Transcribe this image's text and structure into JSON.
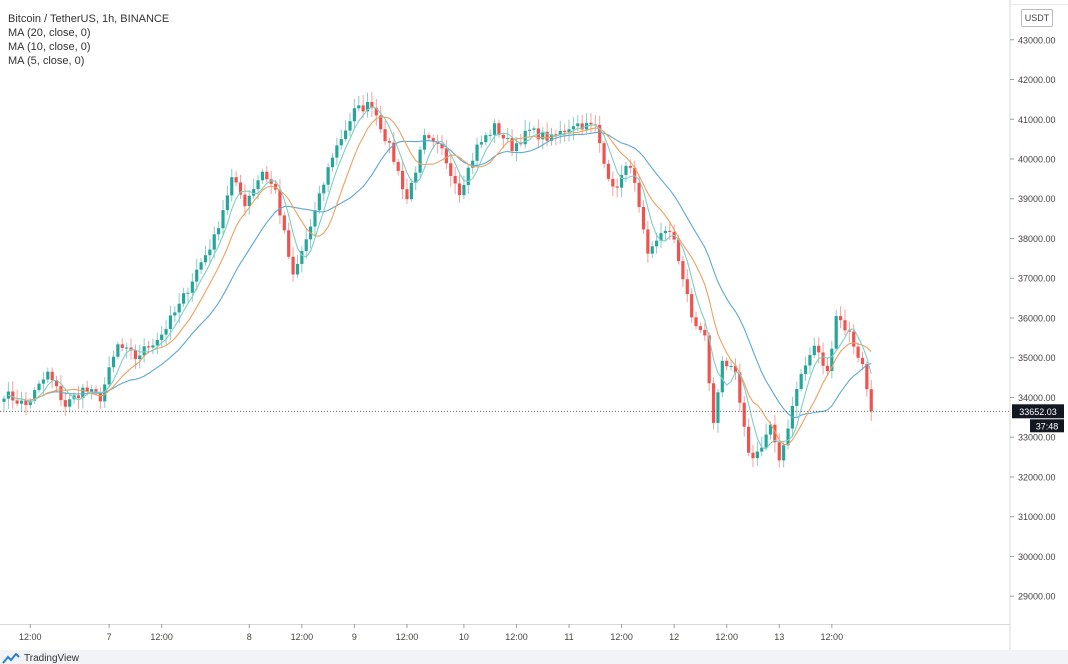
{
  "chart_data": {
    "type": "candlestick",
    "title": "Bitcoin / TetherUS, 1h, BINANCE",
    "currency": "USDT",
    "indicators": [
      {
        "label": "MA (20, close, 0)",
        "color": "#5fa8d3"
      },
      {
        "label": "MA (10, close, 0)",
        "color": "#f0a060"
      },
      {
        "label": "MA (5, close, 0)",
        "color": "#7fcfc2"
      }
    ],
    "y_ticks": [
      "43000.00",
      "42000.00",
      "41000.00",
      "40000.00",
      "39000.00",
      "38000.00",
      "37000.00",
      "36000.00",
      "35000.00",
      "34000.00",
      "33000.00",
      "32000.00",
      "31000.00",
      "30000.00",
      "29000.00"
    ],
    "ylim": [
      28300,
      43900
    ],
    "x_ticks": [
      "12:00",
      "7",
      "12:00",
      "8",
      "12:00",
      "9",
      "12:00",
      "10",
      "12:00",
      "11",
      "12:00",
      "12",
      "12:00",
      "13",
      "12:00"
    ],
    "last_price": "33652.03",
    "countdown": "37:48",
    "colors": {
      "up": "#26a69a",
      "down": "#ef5350"
    },
    "keypoints": [
      [
        0,
        34100
      ],
      [
        5,
        33800
      ],
      [
        10,
        34600
      ],
      [
        14,
        33800
      ],
      [
        18,
        34200
      ],
      [
        22,
        34000
      ],
      [
        26,
        35300
      ],
      [
        30,
        35000
      ],
      [
        36,
        35600
      ],
      [
        40,
        36300
      ],
      [
        44,
        37200
      ],
      [
        48,
        38000
      ],
      [
        52,
        39500
      ],
      [
        55,
        38900
      ],
      [
        59,
        39700
      ],
      [
        62,
        39200
      ],
      [
        66,
        37000
      ],
      [
        70,
        38300
      ],
      [
        75,
        40100
      ],
      [
        80,
        41200
      ],
      [
        84,
        41400
      ],
      [
        89,
        40000
      ],
      [
        92,
        39000
      ],
      [
        96,
        40500
      ],
      [
        100,
        40200
      ],
      [
        104,
        39200
      ],
      [
        108,
        40300
      ],
      [
        112,
        40800
      ],
      [
        116,
        40300
      ],
      [
        120,
        40700
      ],
      [
        125,
        40500
      ],
      [
        130,
        40900
      ],
      [
        135,
        40800
      ],
      [
        139,
        39200
      ],
      [
        143,
        39900
      ],
      [
        147,
        37500
      ],
      [
        150,
        38200
      ],
      [
        153,
        38000
      ],
      [
        157,
        36000
      ],
      [
        160,
        35500
      ],
      [
        162,
        33300
      ],
      [
        164,
        35000
      ],
      [
        167,
        34500
      ],
      [
        170,
        32500
      ],
      [
        172,
        32600
      ],
      [
        175,
        33300
      ],
      [
        177,
        32300
      ],
      [
        181,
        34300
      ],
      [
        185,
        35300
      ],
      [
        188,
        34600
      ],
      [
        190,
        36100
      ],
      [
        193,
        35600
      ],
      [
        196,
        34800
      ],
      [
        198,
        33652
      ]
    ],
    "candle_count": 199,
    "x_tick_positions": [
      6,
      24,
      36,
      56,
      68,
      80,
      92,
      105,
      117,
      129,
      141,
      153,
      165,
      177,
      189
    ]
  },
  "branding": {
    "name": "TradingView"
  }
}
